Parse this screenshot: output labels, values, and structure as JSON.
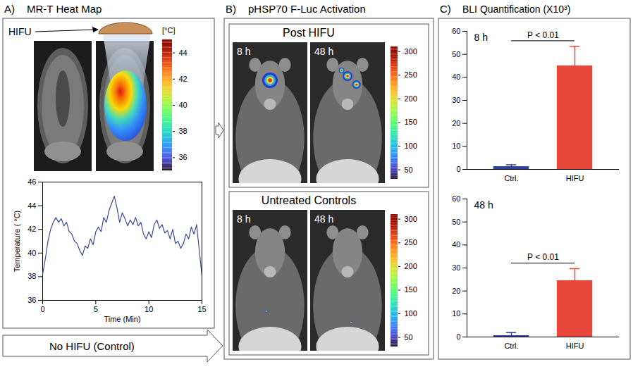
{
  "figure": {
    "panel_a": {
      "letter": "A)",
      "title": "MR-T Heat Map",
      "transducer_label": "HIFU",
      "colorbar": {
        "label": "[°C]",
        "range": [
          35,
          45
        ],
        "ticks": [
          36,
          38,
          40,
          42,
          44
        ]
      }
    },
    "panel_b": {
      "letter": "B)",
      "title": "pHSP70 F-Luc Activation",
      "groups": [
        {
          "title": "Post HIFU",
          "images": [
            "8 h",
            "48 h"
          ]
        },
        {
          "title": "Untreated Controls",
          "images": [
            "8 h",
            "48 h"
          ]
        }
      ],
      "colorbar": {
        "range": [
          30,
          310
        ],
        "ticks": [
          50,
          100,
          150,
          200,
          250,
          300
        ]
      }
    },
    "panel_c": {
      "letter": "C)",
      "title": "BLI Quantification (X10³)"
    },
    "control_arrow": "No HIFU (Control)"
  },
  "chart_data": [
    {
      "type": "line",
      "color": "#3b4a9a",
      "x": [
        0,
        0.25,
        0.5,
        0.75,
        1,
        1.25,
        1.5,
        1.75,
        2,
        2.25,
        2.5,
        2.75,
        3,
        3.25,
        3.5,
        3.75,
        4,
        4.25,
        4.5,
        4.75,
        5,
        5.25,
        5.5,
        5.75,
        6,
        6.25,
        6.5,
        6.75,
        7,
        7.25,
        7.5,
        7.75,
        8,
        8.25,
        8.5,
        8.75,
        9,
        9.25,
        9.5,
        9.75,
        10,
        10.25,
        10.5,
        10.75,
        11,
        11.25,
        11.5,
        11.75,
        12,
        12.25,
        12.5,
        12.75,
        13,
        13.25,
        13.5,
        13.75,
        14,
        14.25,
        14.5,
        14.75,
        15
      ],
      "values": [
        38.2,
        39.5,
        41.0,
        42.0,
        42.6,
        43.0,
        42.6,
        42.9,
        42.3,
        42.6,
        41.8,
        41.6,
        41.0,
        40.8,
        40.2,
        39.8,
        40.6,
        40.4,
        41.2,
        40.7,
        41.8,
        42.2,
        41.8,
        43.0,
        42.6,
        43.6,
        44.2,
        44.8,
        43.8,
        42.6,
        43.4,
        42.9,
        42.3,
        42.8,
        42.4,
        43.0,
        42.3,
        42.6,
        41.6,
        41.2,
        41.8,
        41.3,
        42.4,
        42.8,
        42.1,
        42.4,
        41.7,
        41.9,
        41.2,
        42.0,
        40.8,
        41.0,
        40.4,
        40.8,
        41.6,
        41.2,
        42.2,
        41.6,
        42.4,
        40.2,
        38.1
      ],
      "xlim": [
        0,
        15
      ],
      "xticks": [
        0,
        5,
        10,
        15
      ],
      "ylim": [
        36,
        46
      ],
      "yticks": [
        36,
        38,
        40,
        42,
        44,
        46
      ],
      "x_label": "Time (Min)",
      "y_label": "Temperature ( °C)"
    },
    {
      "type": "bar",
      "title": "8 h",
      "categories": [
        "Ctrl.",
        "HIFU"
      ],
      "values": [
        1.2,
        45
      ],
      "errors": [
        0.8,
        8.5
      ],
      "colors": [
        "#2b3f9e",
        "#e8483c"
      ],
      "ylim": [
        0,
        60
      ],
      "yticks": [
        0,
        10,
        20,
        30,
        40,
        50,
        60
      ],
      "annotation": "P < 0.01"
    },
    {
      "type": "bar",
      "title": "48 h",
      "categories": [
        "Ctrl.",
        "HIFU"
      ],
      "values": [
        0.6,
        24.5
      ],
      "errors": [
        1.3,
        5.2
      ],
      "colors": [
        "#2b3f9e",
        "#e8483c"
      ],
      "ylim": [
        0,
        60
      ],
      "yticks": [
        0,
        10,
        20,
        30,
        40,
        50,
        60
      ],
      "annotation": "P < 0.01"
    }
  ]
}
